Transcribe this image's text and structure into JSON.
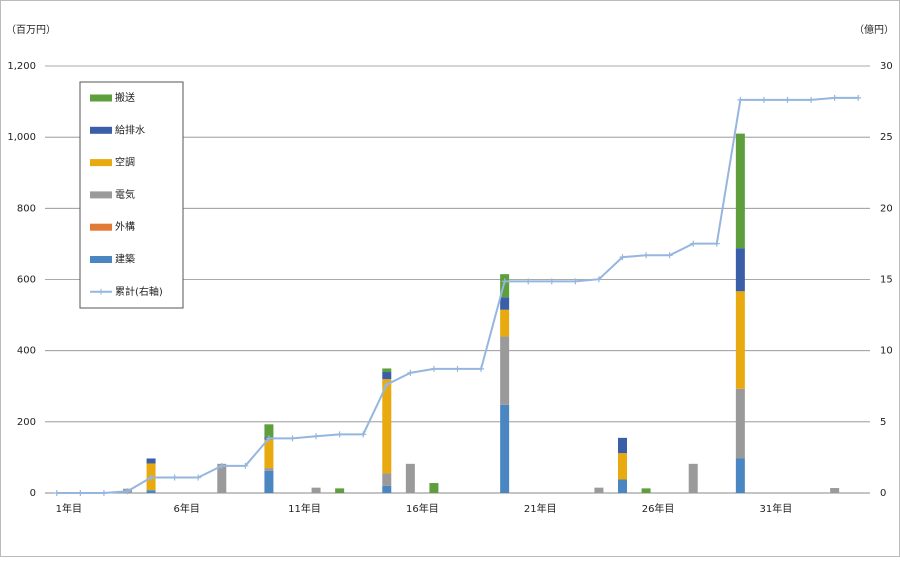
{
  "chart_data": {
    "type": "bar",
    "stacked": true,
    "ylabel": "（百万円）",
    "y2label": "（億円）",
    "categories": [
      "1年目",
      null,
      null,
      null,
      null,
      "6年目",
      null,
      null,
      null,
      null,
      "11年目",
      null,
      null,
      null,
      null,
      "16年目",
      null,
      null,
      null,
      null,
      "21年目",
      null,
      null,
      null,
      null,
      "26年目",
      null,
      null,
      null,
      null,
      "31年目",
      null,
      null,
      null,
      null
    ],
    "series": [
      {
        "name": "搬送",
        "color": "#5e9e3c",
        "values": [
          0,
          0,
          0,
          0,
          0,
          0,
          0,
          0,
          0,
          36,
          0,
          0,
          13,
          0,
          10,
          0,
          28,
          0,
          0,
          65,
          0,
          0,
          0,
          0,
          0,
          13,
          0,
          0,
          0,
          322,
          0,
          0,
          0,
          0,
          0
        ]
      },
      {
        "name": "給排水",
        "color": "#3a5ea8",
        "values": [
          0,
          0,
          0,
          0,
          14,
          0,
          0,
          0,
          0,
          7,
          0,
          0,
          0,
          0,
          20,
          0,
          0,
          0,
          0,
          35,
          0,
          0,
          0,
          0,
          43,
          0,
          0,
          0,
          0,
          121,
          0,
          0,
          0,
          0,
          0
        ]
      },
      {
        "name": "空調",
        "color": "#e8aa0e",
        "values": [
          0,
          0,
          0,
          0,
          75,
          0,
          0,
          0,
          0,
          80,
          0,
          0,
          0,
          0,
          265,
          0,
          0,
          0,
          0,
          75,
          0,
          0,
          0,
          0,
          74,
          0,
          0,
          0,
          0,
          274,
          0,
          0,
          0,
          0,
          0
        ]
      },
      {
        "name": "電気",
        "color": "#9a9a9a",
        "values": [
          0,
          0,
          0,
          12,
          0,
          0,
          0,
          82,
          0,
          8,
          0,
          15,
          0,
          0,
          35,
          82,
          0,
          0,
          0,
          192,
          0,
          0,
          0,
          15,
          0,
          0,
          0,
          82,
          0,
          196,
          0,
          0,
          0,
          14,
          0
        ]
      },
      {
        "name": "外構",
        "color": "#e07a35",
        "values": [
          0,
          0,
          0,
          0,
          0,
          0,
          0,
          0,
          0,
          0,
          0,
          0,
          0,
          0,
          0,
          0,
          0,
          0,
          0,
          0,
          0,
          0,
          0,
          0,
          0,
          0,
          0,
          0,
          0,
          0,
          0,
          0,
          0,
          0,
          0
        ]
      },
      {
        "name": "建築",
        "color": "#4a87c2",
        "values": [
          0,
          0,
          0,
          0,
          8,
          0,
          0,
          0,
          0,
          62,
          0,
          0,
          0,
          0,
          20,
          0,
          0,
          0,
          0,
          248,
          0,
          0,
          0,
          0,
          38,
          0,
          0,
          0,
          0,
          97,
          0,
          0,
          0,
          0,
          0
        ]
      },
      {
        "name": "累計(右軸)",
        "type": "line",
        "axis": "y2",
        "color": "#95b6de",
        "values": [
          0,
          0,
          0,
          0.12,
          1.09,
          1.09,
          1.09,
          1.91,
          1.91,
          3.84,
          3.84,
          3.99,
          4.12,
          4.12,
          7.62,
          8.44,
          8.72,
          8.72,
          8.72,
          14.87,
          14.87,
          14.87,
          14.87,
          15.02,
          16.57,
          16.7,
          16.7,
          17.52,
          17.52,
          27.62,
          27.62,
          27.62,
          27.62,
          27.76,
          27.76
        ]
      }
    ],
    "ylim": [
      0,
      1200
    ],
    "yticks": [
      0,
      200,
      400,
      600,
      800,
      {
        "value": 1000,
        "label": "1,000"
      },
      {
        "value": 1200,
        "label": "1,200"
      }
    ],
    "y2lim": [
      0,
      30
    ],
    "y2ticks": [
      0,
      5,
      10,
      15,
      20,
      25,
      30
    ],
    "grid": true,
    "legend": "upper left"
  }
}
